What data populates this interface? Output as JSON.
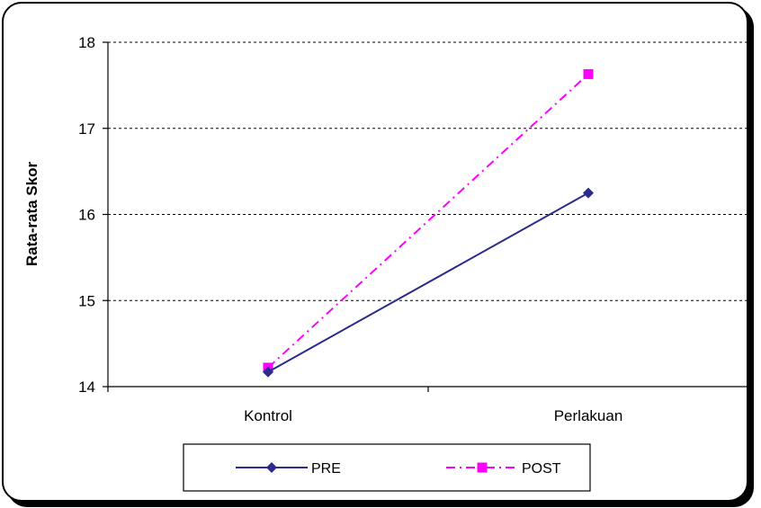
{
  "chart_data": {
    "type": "line",
    "title": "",
    "xlabel": "",
    "ylabel": "Rata-rata Skor",
    "categories": [
      "Kontrol",
      "Perlakuan"
    ],
    "ylim": [
      14,
      18
    ],
    "yticks": [
      14,
      15,
      16,
      17,
      18
    ],
    "grid": true,
    "legend_position": "bottom",
    "series": [
      {
        "name": "PRE",
        "values": [
          14.17,
          16.25
        ],
        "color": "#2B2B8C",
        "marker": "diamond",
        "line_style": "solid"
      },
      {
        "name": "POST",
        "values": [
          14.22,
          17.63
        ],
        "color": "#FF00FF",
        "marker": "square",
        "line_style": "dash-dot"
      }
    ]
  }
}
